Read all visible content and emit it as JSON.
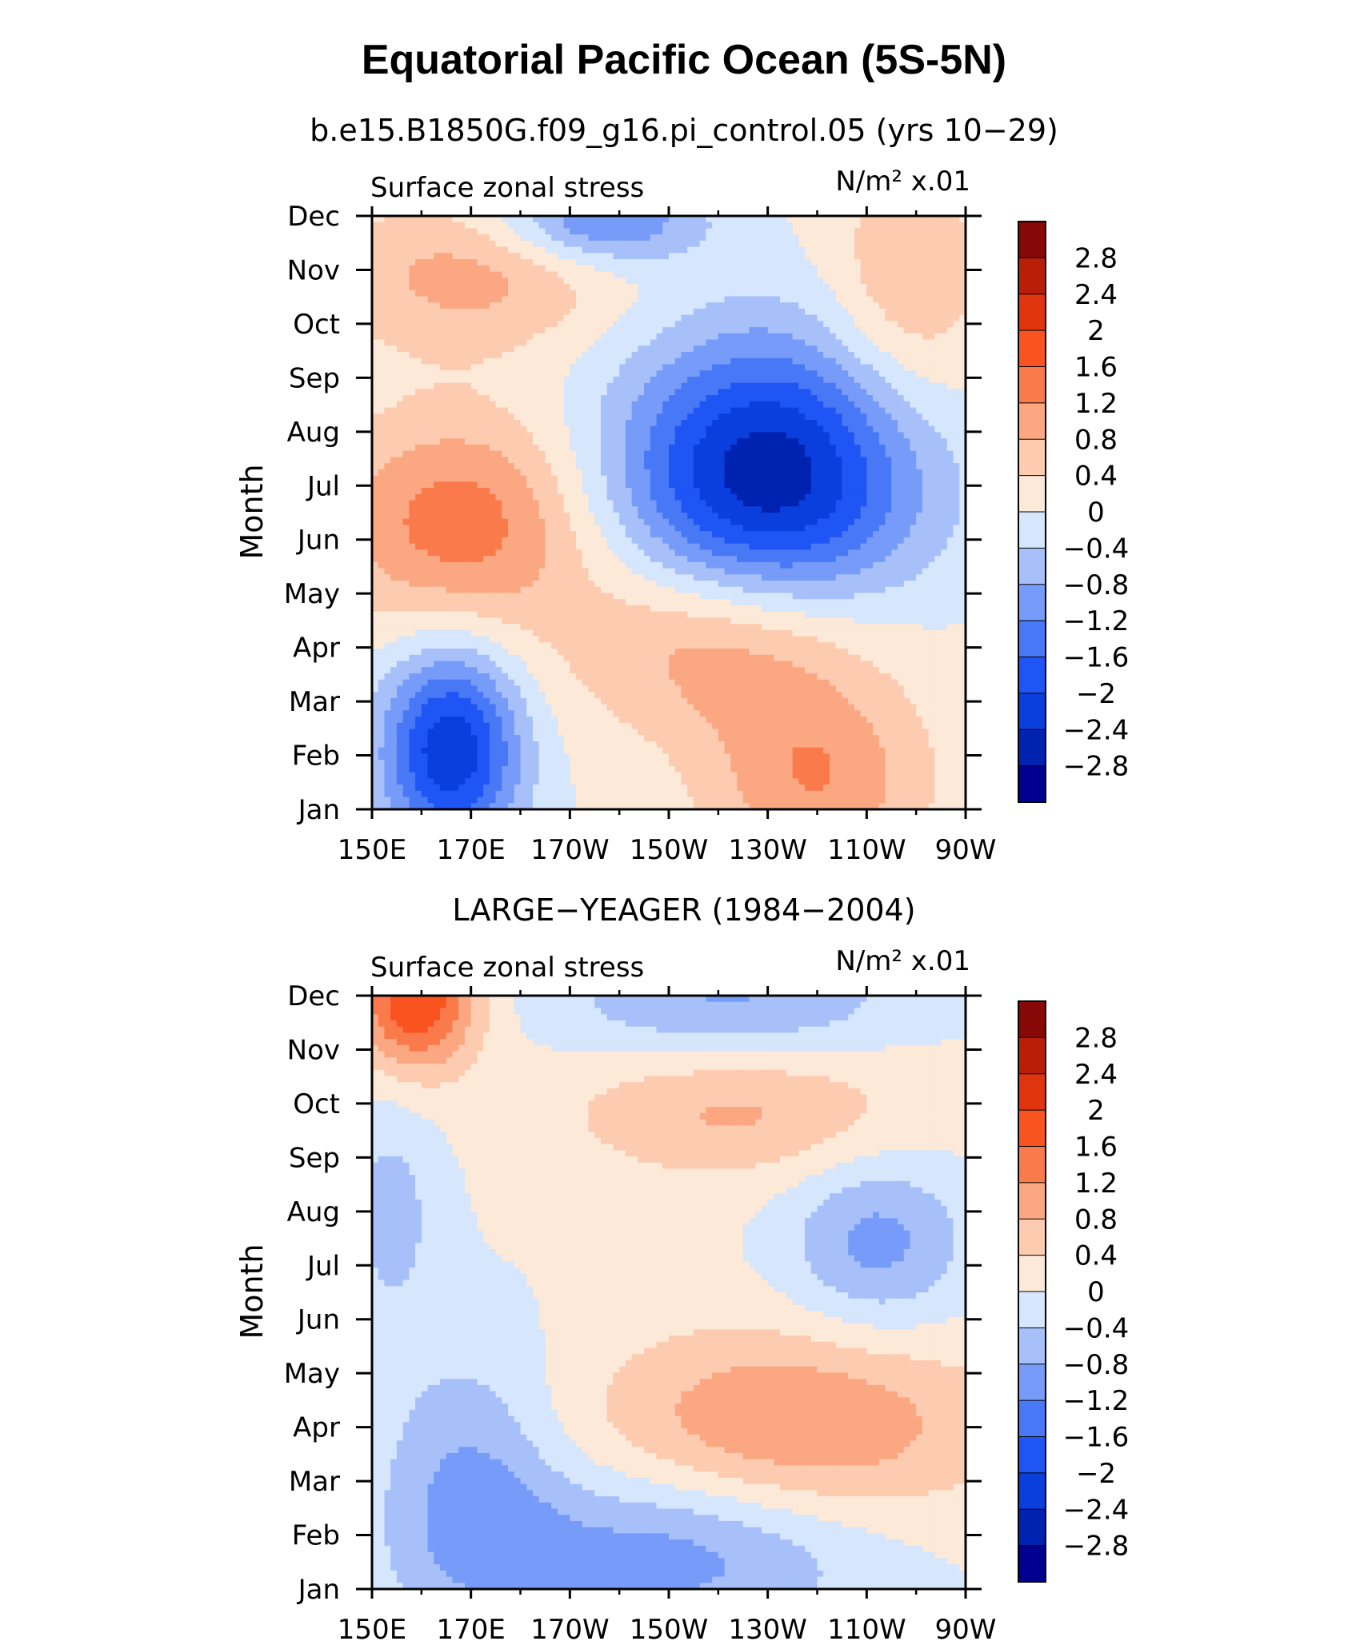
{
  "figure": {
    "title": "Equatorial Pacific Ocean (5S-5N)"
  },
  "colors": {
    "levels_bounds": [
      -3.2,
      -2.8,
      -2.4,
      -2,
      -1.6,
      -1.2,
      -0.8,
      -0.4,
      0,
      0.4,
      0.8,
      1.2,
      1.6,
      2,
      2.4,
      2.8,
      3.2
    ],
    "fill": [
      "#000090",
      "#0022b0",
      "#0a3fdd",
      "#1f55f5",
      "#4878f6",
      "#769bf8",
      "#a7c0fa",
      "#d6e6fc",
      "#fde9d8",
      "#fccbb0",
      "#fba882",
      "#fb7a4c",
      "#f9531f",
      "#e0340f",
      "#b91f08",
      "#870806"
    ]
  },
  "chart_data": [
    {
      "type": "heatmap",
      "subtitle": "b.e15.B1850G.f09_g16.pi_control.05 (yrs 10−29)",
      "left_label": "Surface zonal stress",
      "right_label": "N/m² x.01",
      "ylabel": "Month",
      "x_axis": {
        "range": [
          150,
          270
        ],
        "ticks": [
          150,
          170,
          190,
          210,
          230,
          250,
          270
        ],
        "tick_labels": [
          "150E",
          "170E",
          "170W",
          "150W",
          "130W",
          "110W",
          "90W"
        ]
      },
      "y_axis": {
        "range": [
          0,
          11
        ],
        "ticks": [
          0,
          1,
          2,
          3,
          4,
          5,
          6,
          7,
          8,
          9,
          10,
          11
        ],
        "tick_labels": [
          "Jan",
          "Feb",
          "Mar",
          "Apr",
          "May",
          "Jun",
          "Jul",
          "Aug",
          "Sep",
          "Oct",
          "Nov",
          "Dec"
        ]
      },
      "colorbar_labels": [
        "2.8",
        "2.4",
        "2",
        "1.6",
        "1.2",
        "0.8",
        "0.4",
        "0",
        "−0.4",
        "−0.8",
        "−1.2",
        "−1.6",
        "−2",
        "−2.4",
        "−2.8"
      ],
      "z_units": "N/m2 x0.01",
      "features": [
        {
          "level": -2.4,
          "lon": 166,
          "mon": 1.1,
          "rlon": 14,
          "rmon": 1.9
        },
        {
          "level": -2.8,
          "lon": 230,
          "mon": 6.1,
          "rlon": 30,
          "rmon": 2.6
        },
        {
          "level": 1.4,
          "lon": 168,
          "mon": 5.3,
          "rlon": 26,
          "rmon": 2.0
        },
        {
          "level": 1.3,
          "lon": 222,
          "mon": 3.2,
          "rlon": 30,
          "rmon": 1.8
        },
        {
          "level": 1.1,
          "lon": 240,
          "mon": 0.5,
          "rlon": 22,
          "rmon": 1.8
        },
        {
          "level": 0.9,
          "lon": 170,
          "mon": 9.9,
          "rlon": 30,
          "rmon": 1.4
        },
        {
          "level": 0.8,
          "lon": 258,
          "mon": 9.6,
          "rlon": 16,
          "rmon": 2.4
        },
        {
          "level": -1.4,
          "lon": 196,
          "mon": 10.9,
          "rlon": 20,
          "rmon": 0.8
        }
      ]
    },
    {
      "type": "heatmap",
      "subtitle": "LARGE−YEAGER (1984−2004)",
      "left_label": "Surface zonal stress",
      "right_label": "N/m² x.01",
      "ylabel": "Month",
      "x_axis": {
        "range": [
          150,
          270
        ],
        "ticks": [
          150,
          170,
          190,
          210,
          230,
          250,
          270
        ],
        "tick_labels": [
          "150E",
          "170E",
          "170W",
          "150W",
          "130W",
          "110W",
          "90W"
        ]
      },
      "y_axis": {
        "range": [
          0,
          11
        ],
        "ticks": [
          0,
          1,
          2,
          3,
          4,
          5,
          6,
          7,
          8,
          9,
          10,
          11
        ],
        "tick_labels": [
          "Jan",
          "Feb",
          "Mar",
          "Apr",
          "May",
          "Jun",
          "Jul",
          "Aug",
          "Sep",
          "Oct",
          "Nov",
          "Dec"
        ]
      },
      "colorbar_labels": [
        "2.8",
        "2.4",
        "2",
        "1.6",
        "1.2",
        "0.8",
        "0.4",
        "0",
        "−0.4",
        "−0.8",
        "−1.2",
        "−1.6",
        "−2",
        "−2.4",
        "−2.8"
      ],
      "z_units": "N/m2 x0.01",
      "features": [
        {
          "level": 2.0,
          "lon": 159,
          "mon": 10.9,
          "rlon": 12,
          "rmon": 1.3
        },
        {
          "level": 1.2,
          "lon": 235,
          "mon": 3.0,
          "rlon": 40,
          "rmon": 1.8
        },
        {
          "level": 0.8,
          "lon": 224,
          "mon": 8.8,
          "rlon": 34,
          "rmon": 1.2
        },
        {
          "level": -1.1,
          "lon": 210,
          "mon": 0.7,
          "rlon": 40,
          "rmon": 1.6
        },
        {
          "level": -0.9,
          "lon": 170,
          "mon": 1.9,
          "rlon": 18,
          "rmon": 2.6
        },
        {
          "level": -1.0,
          "lon": 252,
          "mon": 6.4,
          "rlon": 18,
          "rmon": 1.6
        },
        {
          "level": -0.9,
          "lon": 222,
          "mon": 10.9,
          "rlon": 34,
          "rmon": 1.0
        },
        {
          "level": -0.6,
          "lon": 154,
          "mon": 7.0,
          "rlon": 10,
          "rmon": 2.2
        }
      ]
    }
  ]
}
